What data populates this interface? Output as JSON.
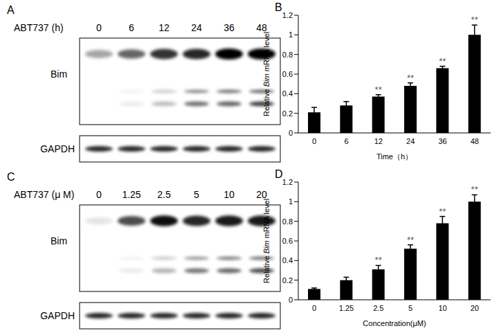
{
  "blots": [
    {
      "panel": "A",
      "treatment_label": "ABT737 (h)",
      "lanes": [
        "0",
        "6",
        "12",
        "24",
        "36",
        "48"
      ],
      "rows": [
        "Bim",
        "GAPDH"
      ]
    },
    {
      "panel": "C",
      "treatment_label": "ABT737 (μ M)",
      "lanes": [
        "0",
        "1.25",
        "2.5",
        "5",
        "10",
        "20"
      ],
      "rows": [
        "Bim",
        "GAPDH"
      ]
    }
  ],
  "chart_data": [
    {
      "type": "bar",
      "title": "B",
      "categories": [
        "0",
        "6",
        "12",
        "24",
        "36",
        "48"
      ],
      "values": [
        0.21,
        0.28,
        0.37,
        0.48,
        0.66,
        1.0
      ],
      "errors": [
        0.05,
        0.04,
        0.02,
        0.03,
        0.02,
        0.1
      ],
      "annotations": [
        null,
        null,
        "**",
        "**",
        "**",
        "**"
      ],
      "x_label": "Time（h）",
      "y_label": "Relative Bim mRNA level",
      "color": "#000000",
      "ylim": [
        0,
        1.2
      ],
      "yticks": [
        0,
        0.2,
        0.4,
        0.6,
        0.8,
        1,
        1.2
      ],
      "grid": false
    },
    {
      "type": "bar",
      "title": "D",
      "categories": [
        "0",
        "1.25",
        "2.5",
        "5",
        "10",
        "20"
      ],
      "values": [
        0.11,
        0.2,
        0.31,
        0.52,
        0.78,
        1.0
      ],
      "errors": [
        0.01,
        0.03,
        0.04,
        0.04,
        0.07,
        0.07
      ],
      "annotations": [
        null,
        null,
        "**",
        "**",
        "**",
        "**"
      ],
      "x_label": "Concentration(μM)",
      "y_label": "Relative Bim mRNA level",
      "color": "#000000",
      "ylim": [
        0,
        1.2
      ],
      "yticks": [
        0,
        0.2,
        0.4,
        0.6,
        0.8,
        1,
        1.2
      ],
      "grid": false
    }
  ]
}
